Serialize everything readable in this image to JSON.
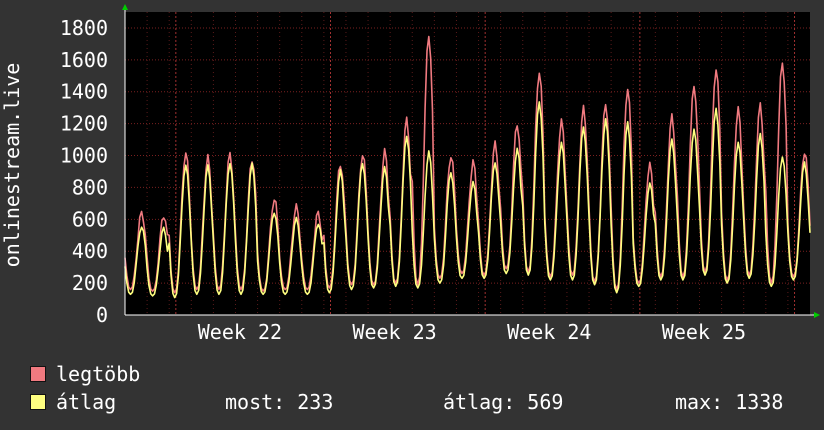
{
  "chart_data": {
    "type": "line",
    "ylabel": "onlinestream.live",
    "ylim": [
      0,
      1900
    ],
    "yticks": [
      0,
      200,
      400,
      600,
      800,
      1000,
      1200,
      1400,
      1600,
      1800
    ],
    "week_labels": [
      "Week 22",
      "Week 23",
      "Week 24",
      "Week 25"
    ],
    "grid": true,
    "legend_placement": "bottom-left",
    "days": 31,
    "series": [
      {
        "name": "legtöbb",
        "color": "#f07a80",
        "daily_peaks": [
          650,
          620,
          1010,
          985,
          1025,
          990,
          720,
          660,
          640,
          970,
          1020,
          1010,
          1210,
          1770,
          1020,
          960,
          1060,
          1190,
          1540,
          1230,
          1300,
          1320,
          1420,
          950,
          1260,
          1450,
          1540,
          1280,
          1320,
          1610,
          1030
        ],
        "daily_mins": [
          160,
          150,
          140,
          160,
          160,
          160,
          150,
          160,
          160,
          170,
          190,
          190,
          200,
          190,
          230,
          260,
          250,
          290,
          270,
          240,
          250,
          210,
          160,
          200,
          240,
          240,
          270,
          220,
          250,
          200,
          240
        ]
      },
      {
        "name": "átlag",
        "color": "#ffff80",
        "daily_peaks": [
          560,
          540,
          950,
          930,
          960,
          940,
          650,
          600,
          580,
          900,
          960,
          920,
          1130,
          1020,
          900,
          830,
          960,
          1040,
          1340,
          1080,
          1180,
          1230,
          1210,
          830,
          1100,
          1170,
          1290,
          1090,
          1130,
          1000,
          950
        ],
        "daily_mins": [
          130,
          120,
          110,
          130,
          130,
          130,
          130,
          130,
          130,
          140,
          160,
          170,
          180,
          170,
          200,
          230,
          230,
          260,
          250,
          220,
          220,
          190,
          140,
          180,
          220,
          220,
          250,
          200,
          230,
          180,
          220
        ]
      }
    ]
  },
  "legend": {
    "items": [
      {
        "label": "legtöbb",
        "color": "#f07a80"
      },
      {
        "label": "átlag",
        "color": "#ffff80"
      }
    ]
  },
  "stats": {
    "most": "most: 233",
    "atlag": "átlag: 569",
    "max": "max: 1338"
  }
}
